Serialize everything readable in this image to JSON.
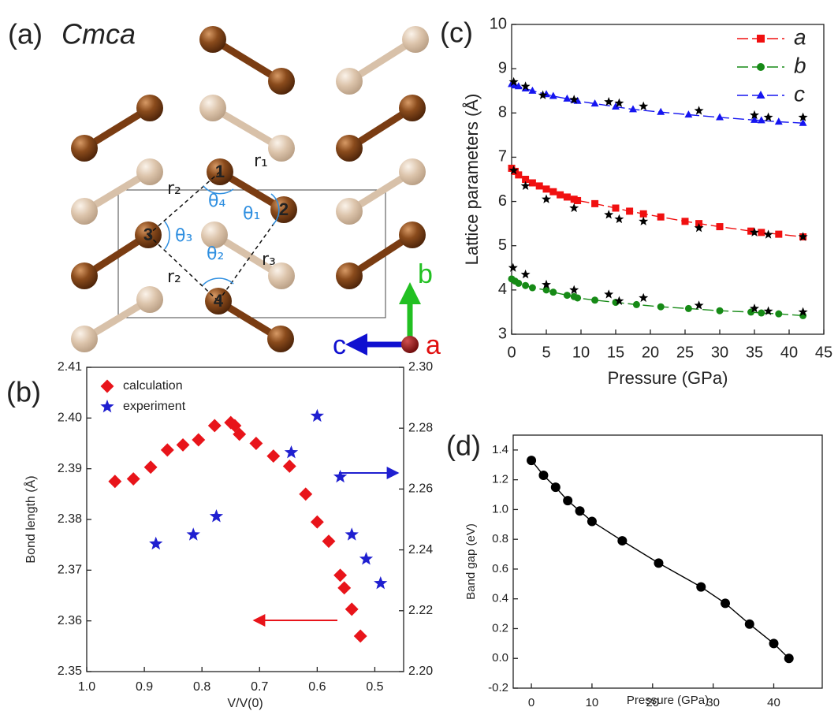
{
  "structure": {
    "panel_label": "(a)",
    "space_group": "Cmca",
    "atoms": [
      "1",
      "2",
      "3",
      "4"
    ],
    "distances": [
      "r₁",
      "r₂",
      "r₃",
      "r₂"
    ],
    "angles": [
      "θ₁",
      "θ₂",
      "θ₃",
      "θ₄"
    ],
    "axes": [
      "a",
      "b",
      "c"
    ]
  },
  "chart_data": [
    {
      "type": "scatter",
      "panel_label": "(b)",
      "x_label": "V/V(0)",
      "y_label": "Bond length (Å)",
      "xlim": [
        1.0,
        0.45
      ],
      "xticks": [
        {
          "value": 1,
          "label": "1.0"
        },
        0.9,
        0.8,
        0.7,
        0.6,
        0.5
      ],
      "ylim": [
        2.35,
        2.41
      ],
      "yticks": [
        2.35,
        2.36,
        2.37,
        2.38,
        2.39,
        {
          "value": 2.4,
          "label": "2.40"
        },
        2.41
      ],
      "y2lim": [
        2.2,
        2.3
      ],
      "y2ticks": [
        {
          "value": 2.2,
          "label": "2.20"
        },
        2.22,
        2.24,
        2.26,
        2.28,
        {
          "value": 2.3,
          "label": "2.30"
        }
      ],
      "legend": "upper left",
      "series": [
        {
          "name": "calculation",
          "color": "#e8141a",
          "marker": "diamond",
          "x": [
            0.951,
            0.919,
            0.889,
            0.86,
            0.833,
            0.806,
            0.778,
            0.75,
            0.743,
            0.735,
            0.706,
            0.676,
            0.648,
            0.62,
            0.6,
            0.58,
            0.56,
            0.553,
            0.54,
            0.525
          ],
          "values": [
            2.3875,
            2.388,
            2.3903,
            2.3937,
            2.3947,
            2.3957,
            2.3985,
            2.3991,
            2.3985,
            2.3968,
            2.395,
            2.3925,
            2.3905,
            2.385,
            2.3795,
            2.3757,
            2.369,
            2.3665,
            2.3623,
            2.357
          ]
        },
        {
          "name": "experiment",
          "color": "#1f1fd0",
          "marker": "star",
          "axis": "y2",
          "x": [
            0.88,
            0.815,
            0.775,
            0.645,
            0.6,
            0.56,
            0.54,
            0.515,
            0.49
          ],
          "values": [
            2.242,
            2.245,
            2.251,
            2.272,
            2.284,
            2.264,
            2.245,
            2.237,
            2.229
          ]
        }
      ]
    },
    {
      "type": "line",
      "panel_label": "(c)",
      "x_label": "Pressure (GPa)",
      "y_label": "Lattice parameters (Å)",
      "xlim": [
        0,
        45
      ],
      "xticks": [
        0,
        5,
        10,
        15,
        20,
        25,
        30,
        35,
        40,
        45
      ],
      "ylim": [
        3,
        10
      ],
      "yticks": [
        3,
        4,
        5,
        6,
        7,
        8,
        9,
        10
      ],
      "legend": "upper right",
      "series": [
        {
          "name": "a",
          "color": "#f01010",
          "marker": "square",
          "line_style": "dashed",
          "x": [
            0,
            0.5,
            1,
            2,
            3,
            4,
            5,
            6,
            7,
            8,
            9,
            9.5,
            12,
            15,
            17,
            19,
            21.5,
            25,
            27,
            30,
            34.5,
            36,
            38.5,
            42
          ],
          "values": [
            6.75,
            6.68,
            6.6,
            6.5,
            6.42,
            6.35,
            6.28,
            6.22,
            6.15,
            6.1,
            6.05,
            6.02,
            5.95,
            5.85,
            5.78,
            5.72,
            5.65,
            5.55,
            5.5,
            5.43,
            5.33,
            5.3,
            5.26,
            5.2
          ]
        },
        {
          "name": "b",
          "color": "#168a16",
          "marker": "circle",
          "line_style": "dashed",
          "x": [
            0,
            0.5,
            1,
            2,
            3,
            5,
            6,
            8,
            9,
            9.5,
            12,
            15,
            18,
            21.5,
            25.5,
            30,
            34.5,
            36,
            38.5,
            42
          ],
          "values": [
            4.25,
            4.2,
            4.15,
            4.1,
            4.05,
            4.0,
            3.95,
            3.88,
            3.85,
            3.82,
            3.77,
            3.72,
            3.67,
            3.62,
            3.58,
            3.53,
            3.5,
            3.48,
            3.46,
            3.42
          ]
        },
        {
          "name": "c",
          "color": "#1515f0",
          "marker": "triangle",
          "line_style": "dashed",
          "x": [
            0,
            0.5,
            1,
            2,
            3,
            5,
            6,
            8,
            9,
            9.5,
            12,
            15,
            17.5,
            21.5,
            25.5,
            30,
            35,
            36,
            38.5,
            42
          ],
          "values": [
            8.65,
            8.62,
            8.6,
            8.55,
            8.5,
            8.42,
            8.38,
            8.32,
            8.29,
            8.27,
            8.21,
            8.14,
            8.08,
            8.02,
            7.96,
            7.9,
            7.84,
            7.83,
            7.8,
            7.77
          ]
        },
        {
          "color": "#000000",
          "marker": "star",
          "x": [
            0.3,
            2,
            4.5,
            9,
            14,
            15.5,
            19,
            27,
            35,
            37,
            42,
            0.3,
            2,
            5,
            9,
            14,
            15.5,
            19,
            27,
            35,
            37,
            42,
            0.2,
            2,
            5,
            9,
            14,
            15.5,
            19,
            27,
            35,
            37,
            42
          ],
          "values": [
            8.7,
            8.6,
            8.4,
            8.3,
            8.25,
            8.22,
            8.15,
            8.05,
            7.95,
            7.9,
            7.9,
            6.7,
            6.35,
            6.05,
            5.85,
            5.7,
            5.6,
            5.55,
            5.4,
            5.3,
            5.25,
            5.2,
            4.5,
            4.35,
            4.12,
            4.0,
            3.9,
            3.75,
            3.82,
            3.65,
            3.58,
            3.52,
            3.5
          ]
        }
      ]
    },
    {
      "type": "line",
      "panel_label": "(d)",
      "x_label": "Pressure (GPa)",
      "y_label": "Band gap (eV)",
      "xlim": [
        -3,
        48
      ],
      "xticks": [
        0,
        10,
        20,
        30,
        40
      ],
      "ylim": [
        -0.2,
        1.5
      ],
      "yticks": [
        -0.2,
        {
          "value": 0,
          "label": "0.0"
        },
        0.2,
        0.4,
        0.6,
        0.8,
        {
          "value": 1,
          "label": "1.0"
        },
        1.2,
        1.4
      ],
      "series": [
        {
          "color": "#000000",
          "marker": "circle",
          "line_style": "solid",
          "x": [
            0,
            2,
            4,
            6,
            8,
            10,
            15,
            21,
            28,
            32,
            36,
            40,
            42.5
          ],
          "values": [
            1.33,
            1.23,
            1.15,
            1.06,
            0.99,
            0.92,
            0.79,
            0.64,
            0.48,
            0.37,
            0.23,
            0.1,
            0.0
          ]
        }
      ]
    }
  ]
}
